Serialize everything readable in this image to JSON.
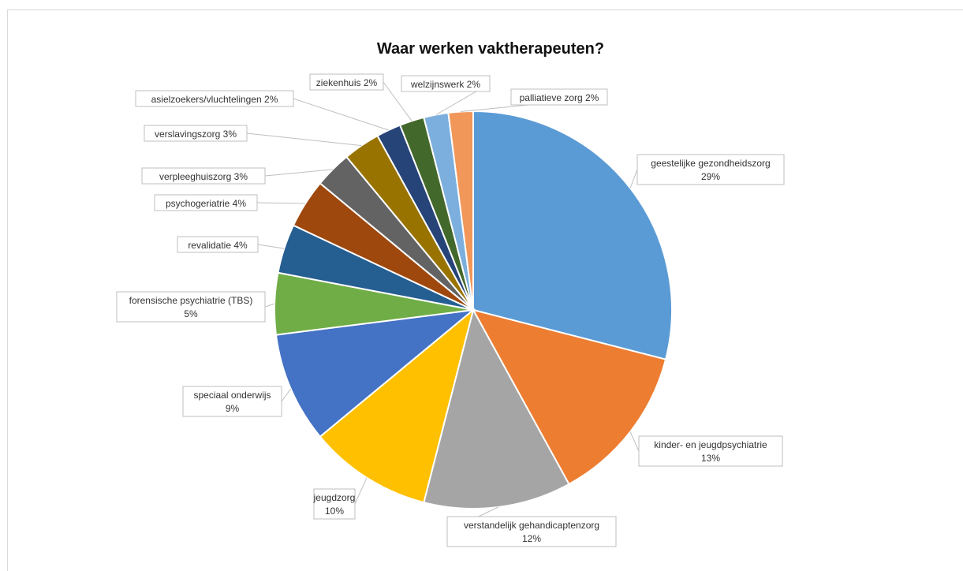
{
  "chart_data": {
    "type": "pie",
    "title": "Waar werken vaktherapeuten?",
    "slices": [
      {
        "label": "geestelijke gezondheidszorg",
        "pct_text": "29%",
        "value": 29,
        "color": "#5b9bd5"
      },
      {
        "label": "kinder- en jeugdpsychiatrie",
        "pct_text": "13%",
        "value": 13,
        "color": "#ed7d31"
      },
      {
        "label": "verstandelijk gehandicaptenzorg",
        "pct_text": "12%",
        "value": 12,
        "color": "#a5a5a5"
      },
      {
        "label": "jeugdzorg",
        "pct_text": "10%",
        "value": 10,
        "color": "#ffc000"
      },
      {
        "label": "speciaal onderwijs",
        "pct_text": "9%",
        "value": 9,
        "color": "#4472c4"
      },
      {
        "label": "forensische psychiatrie (TBS)",
        "pct_text": "5%",
        "value": 5,
        "color": "#70ad47"
      },
      {
        "label": "revalidatie",
        "pct_text": "4%",
        "value": 4,
        "color": "#255e91"
      },
      {
        "label": "psychogeriatrie",
        "pct_text": "4%",
        "value": 4,
        "color": "#9e480e"
      },
      {
        "label": "verpleeghuiszorg",
        "pct_text": "3%",
        "value": 3,
        "color": "#636363"
      },
      {
        "label": "verslavingszorg",
        "pct_text": "3%",
        "value": 3,
        "color": "#997300"
      },
      {
        "label": "asielzoekers/vluchtelingen",
        "pct_text": "2%",
        "value": 2,
        "color": "#264478"
      },
      {
        "label": "ziekenhuis",
        "pct_text": "2%",
        "value": 2,
        "color": "#43682b"
      },
      {
        "label": "welzijnswerk",
        "pct_text": "2%",
        "value": 2,
        "color": "#7cafdd"
      },
      {
        "label": "palliatieve zorg",
        "pct_text": "2%",
        "value": 2,
        "color": "#f1975a"
      }
    ]
  }
}
